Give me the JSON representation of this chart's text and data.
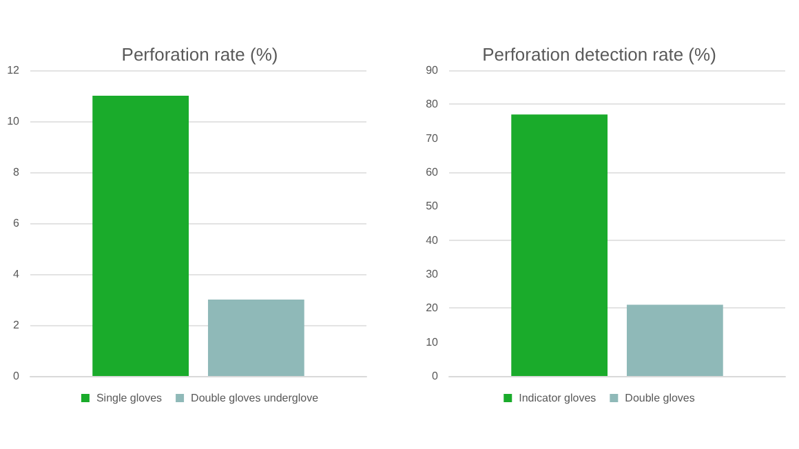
{
  "chart_data": [
    {
      "type": "bar",
      "title": "Perforation rate (%)",
      "categories": [
        null
      ],
      "series": [
        {
          "name": "Single gloves",
          "color": "#1aab2b",
          "values": [
            11
          ]
        },
        {
          "name": "Double gloves underglove",
          "color": "#8fb9b8",
          "values": [
            3
          ]
        }
      ],
      "ylim": [
        0,
        12
      ],
      "yticks": [
        0,
        2,
        4,
        6,
        8,
        10,
        12
      ],
      "grid": "y",
      "legend": "bottom"
    },
    {
      "type": "bar",
      "title": "Perforation detection rate (%)",
      "categories": [
        null
      ],
      "series": [
        {
          "name": "Indicator gloves",
          "color": "#1aab2b",
          "values": [
            77
          ]
        },
        {
          "name": "Double gloves",
          "color": "#8fb9b8",
          "values": [
            21
          ]
        }
      ],
      "ylim": [
        0,
        90
      ],
      "yticks": [
        0,
        10,
        20,
        30,
        40,
        50,
        60,
        70,
        80,
        90
      ],
      "grid": "y",
      "legend": "bottom"
    }
  ]
}
